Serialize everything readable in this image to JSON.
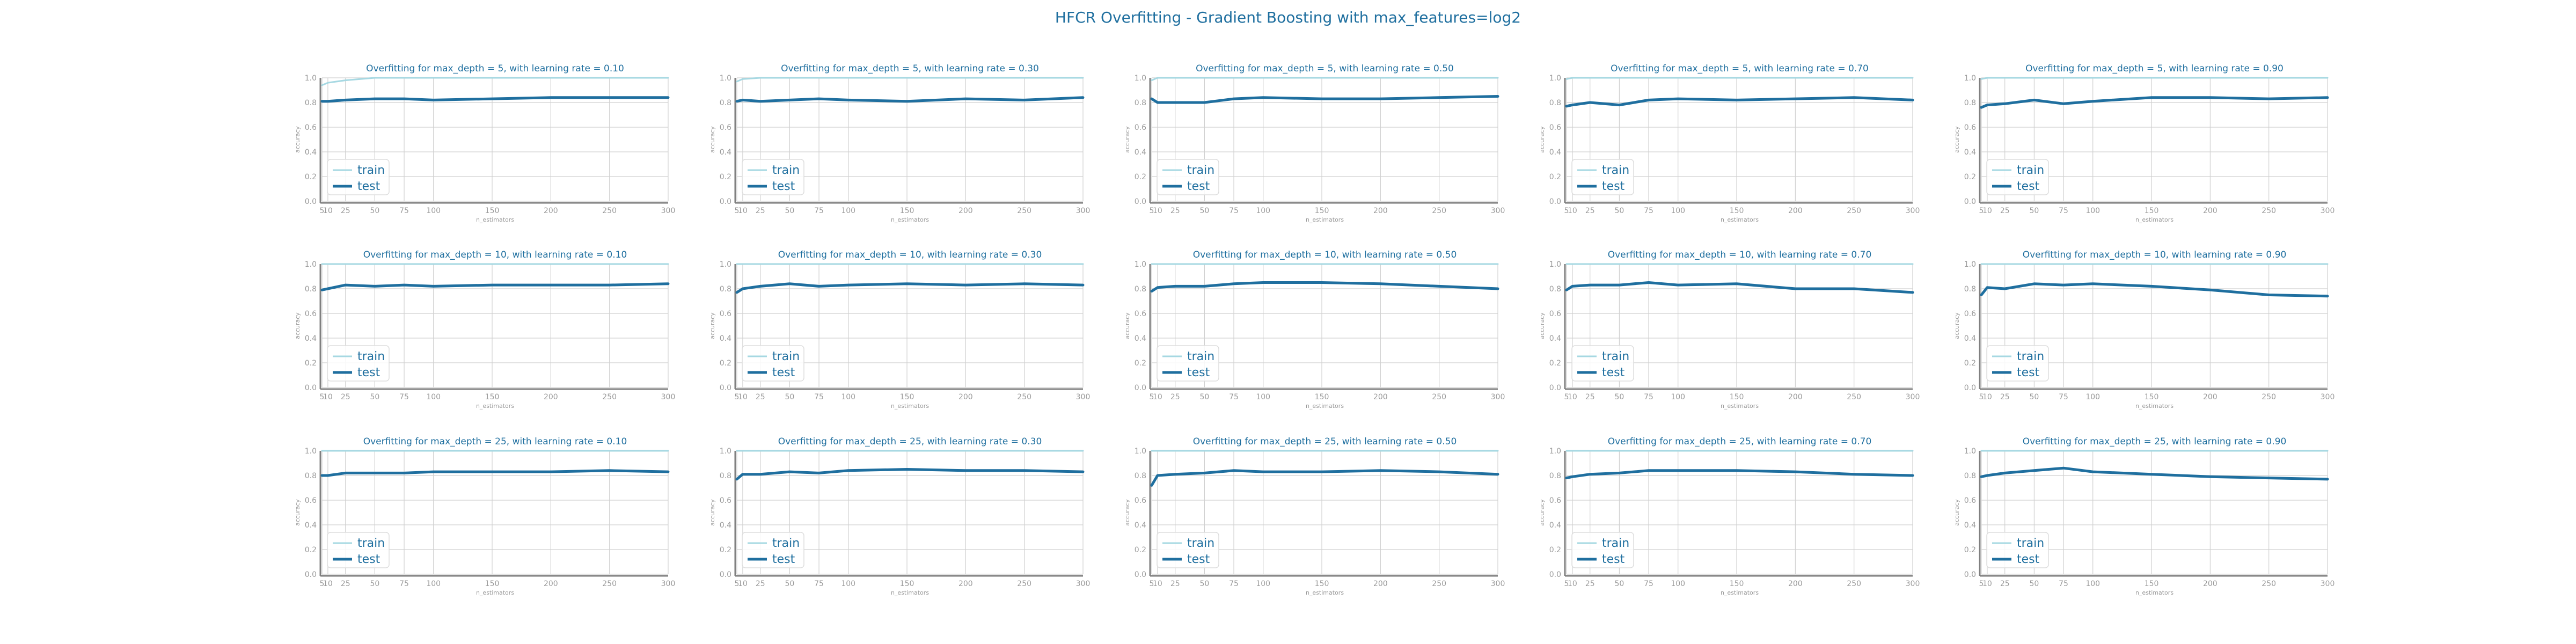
{
  "figure": {
    "title": "HFCR Overfitting - Gradient Boosting with max_features=log2",
    "colors": {
      "train": "#a6d8e2",
      "test": "#1f6f9f",
      "title": "#1f6f9f",
      "axis": "#808080",
      "grid": "#d0d0d0",
      "tick": "#9a9a9a"
    }
  },
  "chart_data": [
    {
      "type": "line",
      "title": "Overfitting for max_depth = 5, with learning rate = 0.10",
      "xlabel": "n_estimators",
      "ylabel": "accuracy",
      "x": [
        5,
        10,
        25,
        50,
        75,
        100,
        150,
        200,
        250,
        300
      ],
      "xticks": [
        "5",
        "10",
        "25",
        "50",
        "75",
        "100",
        "150",
        "200",
        "250",
        "300"
      ],
      "ylim": [
        0.0,
        1.0
      ],
      "yticks": [
        "0.0",
        "0.2",
        "0.4",
        "0.6",
        "0.8",
        "1.0"
      ],
      "xlim": [
        5,
        300
      ],
      "legend": "lower left",
      "grid": true,
      "series": [
        {
          "name": "train",
          "values": [
            0.94,
            0.96,
            0.98,
            1.0,
            1.0,
            1.0,
            1.0,
            1.0,
            1.0,
            1.0
          ]
        },
        {
          "name": "test",
          "values": [
            0.81,
            0.81,
            0.82,
            0.83,
            0.83,
            0.82,
            0.83,
            0.84,
            0.84,
            0.84
          ]
        }
      ]
    },
    {
      "type": "line",
      "title": "Overfitting for max_depth = 5, with learning rate = 0.30",
      "xlabel": "n_estimators",
      "ylabel": "accuracy",
      "x": [
        5,
        10,
        25,
        50,
        75,
        100,
        150,
        200,
        250,
        300
      ],
      "xticks": [
        "5",
        "10",
        "25",
        "50",
        "75",
        "100",
        "150",
        "200",
        "250",
        "300"
      ],
      "ylim": [
        0.0,
        1.0
      ],
      "yticks": [
        "0.0",
        "0.2",
        "0.4",
        "0.6",
        "0.8",
        "1.0"
      ],
      "xlim": [
        5,
        300
      ],
      "legend": "lower left",
      "grid": true,
      "series": [
        {
          "name": "train",
          "values": [
            0.97,
            0.99,
            1.0,
            1.0,
            1.0,
            1.0,
            1.0,
            1.0,
            1.0,
            1.0
          ]
        },
        {
          "name": "test",
          "values": [
            0.81,
            0.82,
            0.81,
            0.82,
            0.83,
            0.82,
            0.81,
            0.83,
            0.82,
            0.84
          ]
        }
      ]
    },
    {
      "type": "line",
      "title": "Overfitting for max_depth = 5, with learning rate = 0.50",
      "xlabel": "n_estimators",
      "ylabel": "accuracy",
      "x": [
        5,
        10,
        25,
        50,
        75,
        100,
        150,
        200,
        250,
        300
      ],
      "xticks": [
        "5",
        "10",
        "25",
        "50",
        "75",
        "100",
        "150",
        "200",
        "250",
        "300"
      ],
      "ylim": [
        0.0,
        1.0
      ],
      "yticks": [
        "0.0",
        "0.2",
        "0.4",
        "0.6",
        "0.8",
        "1.0"
      ],
      "xlim": [
        5,
        300
      ],
      "legend": "lower left",
      "grid": true,
      "series": [
        {
          "name": "train",
          "values": [
            0.98,
            1.0,
            1.0,
            1.0,
            1.0,
            1.0,
            1.0,
            1.0,
            1.0,
            1.0
          ]
        },
        {
          "name": "test",
          "values": [
            0.83,
            0.8,
            0.8,
            0.8,
            0.83,
            0.84,
            0.83,
            0.83,
            0.84,
            0.85
          ]
        }
      ]
    },
    {
      "type": "line",
      "title": "Overfitting for max_depth = 5, with learning rate = 0.70",
      "xlabel": "n_estimators",
      "ylabel": "accuracy",
      "x": [
        5,
        10,
        25,
        50,
        75,
        100,
        150,
        200,
        250,
        300
      ],
      "xticks": [
        "5",
        "10",
        "25",
        "50",
        "75",
        "100",
        "150",
        "200",
        "250",
        "300"
      ],
      "ylim": [
        0.0,
        1.0
      ],
      "yticks": [
        "0.0",
        "0.2",
        "0.4",
        "0.6",
        "0.8",
        "1.0"
      ],
      "xlim": [
        5,
        300
      ],
      "legend": "lower left",
      "grid": true,
      "series": [
        {
          "name": "train",
          "values": [
            0.99,
            1.0,
            1.0,
            1.0,
            1.0,
            1.0,
            1.0,
            1.0,
            1.0,
            1.0
          ]
        },
        {
          "name": "test",
          "values": [
            0.77,
            0.78,
            0.8,
            0.78,
            0.82,
            0.83,
            0.82,
            0.83,
            0.84,
            0.82
          ]
        }
      ]
    },
    {
      "type": "line",
      "title": "Overfitting for max_depth = 5, with learning rate = 0.90",
      "xlabel": "n_estimators",
      "ylabel": "accuracy",
      "x": [
        5,
        10,
        25,
        50,
        75,
        100,
        150,
        200,
        250,
        300
      ],
      "xticks": [
        "5",
        "10",
        "25",
        "50",
        "75",
        "100",
        "150",
        "200",
        "250",
        "300"
      ],
      "ylim": [
        0.0,
        1.0
      ],
      "yticks": [
        "0.0",
        "0.2",
        "0.4",
        "0.6",
        "0.8",
        "1.0"
      ],
      "xlim": [
        5,
        300
      ],
      "legend": "lower left",
      "grid": true,
      "series": [
        {
          "name": "train",
          "values": [
            0.99,
            1.0,
            1.0,
            1.0,
            1.0,
            1.0,
            1.0,
            1.0,
            1.0,
            1.0
          ]
        },
        {
          "name": "test",
          "values": [
            0.76,
            0.78,
            0.79,
            0.82,
            0.79,
            0.81,
            0.84,
            0.84,
            0.83,
            0.84
          ]
        }
      ]
    },
    {
      "type": "line",
      "title": "Overfitting for max_depth = 10, with learning rate = 0.10",
      "xlabel": "n_estimators",
      "ylabel": "accuracy",
      "x": [
        5,
        10,
        25,
        50,
        75,
        100,
        150,
        200,
        250,
        300
      ],
      "xticks": [
        "5",
        "10",
        "25",
        "50",
        "75",
        "100",
        "150",
        "200",
        "250",
        "300"
      ],
      "ylim": [
        0.0,
        1.0
      ],
      "yticks": [
        "0.0",
        "0.2",
        "0.4",
        "0.6",
        "0.8",
        "1.0"
      ],
      "xlim": [
        5,
        300
      ],
      "legend": "lower left",
      "grid": true,
      "series": [
        {
          "name": "train",
          "values": [
            1.0,
            1.0,
            1.0,
            1.0,
            1.0,
            1.0,
            1.0,
            1.0,
            1.0,
            1.0
          ]
        },
        {
          "name": "test",
          "values": [
            0.79,
            0.8,
            0.83,
            0.82,
            0.83,
            0.82,
            0.83,
            0.83,
            0.83,
            0.84
          ]
        }
      ]
    },
    {
      "type": "line",
      "title": "Overfitting for max_depth = 10, with learning rate = 0.30",
      "xlabel": "n_estimators",
      "ylabel": "accuracy",
      "x": [
        5,
        10,
        25,
        50,
        75,
        100,
        150,
        200,
        250,
        300
      ],
      "xticks": [
        "5",
        "10",
        "25",
        "50",
        "75",
        "100",
        "150",
        "200",
        "250",
        "300"
      ],
      "ylim": [
        0.0,
        1.0
      ],
      "yticks": [
        "0.0",
        "0.2",
        "0.4",
        "0.6",
        "0.8",
        "1.0"
      ],
      "xlim": [
        5,
        300
      ],
      "legend": "lower left",
      "grid": true,
      "series": [
        {
          "name": "train",
          "values": [
            1.0,
            1.0,
            1.0,
            1.0,
            1.0,
            1.0,
            1.0,
            1.0,
            1.0,
            1.0
          ]
        },
        {
          "name": "test",
          "values": [
            0.77,
            0.8,
            0.82,
            0.84,
            0.82,
            0.83,
            0.84,
            0.83,
            0.84,
            0.83
          ]
        }
      ]
    },
    {
      "type": "line",
      "title": "Overfitting for max_depth = 10, with learning rate = 0.50",
      "xlabel": "n_estimators",
      "ylabel": "accuracy",
      "x": [
        5,
        10,
        25,
        50,
        75,
        100,
        150,
        200,
        250,
        300
      ],
      "xticks": [
        "5",
        "10",
        "25",
        "50",
        "75",
        "100",
        "150",
        "200",
        "250",
        "300"
      ],
      "ylim": [
        0.0,
        1.0
      ],
      "yticks": [
        "0.0",
        "0.2",
        "0.4",
        "0.6",
        "0.8",
        "1.0"
      ],
      "xlim": [
        5,
        300
      ],
      "legend": "lower left",
      "grid": true,
      "series": [
        {
          "name": "train",
          "values": [
            1.0,
            1.0,
            1.0,
            1.0,
            1.0,
            1.0,
            1.0,
            1.0,
            1.0,
            1.0
          ]
        },
        {
          "name": "test",
          "values": [
            0.78,
            0.81,
            0.82,
            0.82,
            0.84,
            0.85,
            0.85,
            0.84,
            0.82,
            0.8
          ]
        }
      ]
    },
    {
      "type": "line",
      "title": "Overfitting for max_depth = 10, with learning rate = 0.70",
      "xlabel": "n_estimators",
      "ylabel": "accuracy",
      "x": [
        5,
        10,
        25,
        50,
        75,
        100,
        150,
        200,
        250,
        300
      ],
      "xticks": [
        "5",
        "10",
        "25",
        "50",
        "75",
        "100",
        "150",
        "200",
        "250",
        "300"
      ],
      "ylim": [
        0.0,
        1.0
      ],
      "yticks": [
        "0.0",
        "0.2",
        "0.4",
        "0.6",
        "0.8",
        "1.0"
      ],
      "xlim": [
        5,
        300
      ],
      "legend": "lower left",
      "grid": true,
      "series": [
        {
          "name": "train",
          "values": [
            1.0,
            1.0,
            1.0,
            1.0,
            1.0,
            1.0,
            1.0,
            1.0,
            1.0,
            1.0
          ]
        },
        {
          "name": "test",
          "values": [
            0.79,
            0.82,
            0.83,
            0.83,
            0.85,
            0.83,
            0.84,
            0.8,
            0.8,
            0.77
          ]
        }
      ]
    },
    {
      "type": "line",
      "title": "Overfitting for max_depth = 10, with learning rate = 0.90",
      "xlabel": "n_estimators",
      "ylabel": "accuracy",
      "x": [
        5,
        10,
        25,
        50,
        75,
        100,
        150,
        200,
        250,
        300
      ],
      "xticks": [
        "5",
        "10",
        "25",
        "50",
        "75",
        "100",
        "150",
        "200",
        "250",
        "300"
      ],
      "ylim": [
        0.0,
        1.0
      ],
      "yticks": [
        "0.0",
        "0.2",
        "0.4",
        "0.6",
        "0.8",
        "1.0"
      ],
      "xlim": [
        5,
        300
      ],
      "legend": "lower left",
      "grid": true,
      "series": [
        {
          "name": "train",
          "values": [
            1.0,
            1.0,
            1.0,
            1.0,
            1.0,
            1.0,
            1.0,
            1.0,
            1.0,
            1.0
          ]
        },
        {
          "name": "test",
          "values": [
            0.75,
            0.81,
            0.8,
            0.84,
            0.83,
            0.84,
            0.82,
            0.79,
            0.75,
            0.74
          ]
        }
      ]
    },
    {
      "type": "line",
      "title": "Overfitting for max_depth = 25, with learning rate = 0.10",
      "xlabel": "n_estimators",
      "ylabel": "accuracy",
      "x": [
        5,
        10,
        25,
        50,
        75,
        100,
        150,
        200,
        250,
        300
      ],
      "xticks": [
        "5",
        "10",
        "25",
        "50",
        "75",
        "100",
        "150",
        "200",
        "250",
        "300"
      ],
      "ylim": [
        0.0,
        1.0
      ],
      "yticks": [
        "0.0",
        "0.2",
        "0.4",
        "0.6",
        "0.8",
        "1.0"
      ],
      "xlim": [
        5,
        300
      ],
      "legend": "lower left",
      "grid": true,
      "series": [
        {
          "name": "train",
          "values": [
            1.0,
            1.0,
            1.0,
            1.0,
            1.0,
            1.0,
            1.0,
            1.0,
            1.0,
            1.0
          ]
        },
        {
          "name": "test",
          "values": [
            0.8,
            0.8,
            0.82,
            0.82,
            0.82,
            0.83,
            0.83,
            0.83,
            0.84,
            0.83
          ]
        }
      ]
    },
    {
      "type": "line",
      "title": "Overfitting for max_depth = 25, with learning rate = 0.30",
      "xlabel": "n_estimators",
      "ylabel": "accuracy",
      "x": [
        5,
        10,
        25,
        50,
        75,
        100,
        150,
        200,
        250,
        300
      ],
      "xticks": [
        "5",
        "10",
        "25",
        "50",
        "75",
        "100",
        "150",
        "200",
        "250",
        "300"
      ],
      "ylim": [
        0.0,
        1.0
      ],
      "yticks": [
        "0.0",
        "0.2",
        "0.4",
        "0.6",
        "0.8",
        "1.0"
      ],
      "xlim": [
        5,
        300
      ],
      "legend": "lower left",
      "grid": true,
      "series": [
        {
          "name": "train",
          "values": [
            1.0,
            1.0,
            1.0,
            1.0,
            1.0,
            1.0,
            1.0,
            1.0,
            1.0,
            1.0
          ]
        },
        {
          "name": "test",
          "values": [
            0.77,
            0.81,
            0.81,
            0.83,
            0.82,
            0.84,
            0.85,
            0.84,
            0.84,
            0.83
          ]
        }
      ]
    },
    {
      "type": "line",
      "title": "Overfitting for max_depth = 25, with learning rate = 0.50",
      "xlabel": "n_estimators",
      "ylabel": "accuracy",
      "x": [
        5,
        10,
        25,
        50,
        75,
        100,
        150,
        200,
        250,
        300
      ],
      "xticks": [
        "5",
        "10",
        "25",
        "50",
        "75",
        "100",
        "150",
        "200",
        "250",
        "300"
      ],
      "ylim": [
        0.0,
        1.0
      ],
      "yticks": [
        "0.0",
        "0.2",
        "0.4",
        "0.6",
        "0.8",
        "1.0"
      ],
      "xlim": [
        5,
        300
      ],
      "legend": "lower left",
      "grid": true,
      "series": [
        {
          "name": "train",
          "values": [
            1.0,
            1.0,
            1.0,
            1.0,
            1.0,
            1.0,
            1.0,
            1.0,
            1.0,
            1.0
          ]
        },
        {
          "name": "test",
          "values": [
            0.72,
            0.8,
            0.81,
            0.82,
            0.84,
            0.83,
            0.83,
            0.84,
            0.83,
            0.81
          ]
        }
      ]
    },
    {
      "type": "line",
      "title": "Overfitting for max_depth = 25, with learning rate = 0.70",
      "xlabel": "n_estimators",
      "ylabel": "accuracy",
      "x": [
        5,
        10,
        25,
        50,
        75,
        100,
        150,
        200,
        250,
        300
      ],
      "xticks": [
        "5",
        "10",
        "25",
        "50",
        "75",
        "100",
        "150",
        "200",
        "250",
        "300"
      ],
      "ylim": [
        0.0,
        1.0
      ],
      "yticks": [
        "0.0",
        "0.2",
        "0.4",
        "0.6",
        "0.8",
        "1.0"
      ],
      "xlim": [
        5,
        300
      ],
      "legend": "lower left",
      "grid": true,
      "series": [
        {
          "name": "train",
          "values": [
            1.0,
            1.0,
            1.0,
            1.0,
            1.0,
            1.0,
            1.0,
            1.0,
            1.0,
            1.0
          ]
        },
        {
          "name": "test",
          "values": [
            0.78,
            0.79,
            0.81,
            0.82,
            0.84,
            0.84,
            0.84,
            0.83,
            0.81,
            0.8
          ]
        }
      ]
    },
    {
      "type": "line",
      "title": "Overfitting for max_depth = 25, with learning rate = 0.90",
      "xlabel": "n_estimators",
      "ylabel": "accuracy",
      "x": [
        5,
        10,
        25,
        50,
        75,
        100,
        150,
        200,
        250,
        300
      ],
      "xticks": [
        "5",
        "10",
        "25",
        "50",
        "75",
        "100",
        "150",
        "200",
        "250",
        "300"
      ],
      "ylim": [
        0.0,
        1.0
      ],
      "yticks": [
        "0.0",
        "0.2",
        "0.4",
        "0.6",
        "0.8",
        "1.0"
      ],
      "xlim": [
        5,
        300
      ],
      "legend": "lower left",
      "grid": true,
      "series": [
        {
          "name": "train",
          "values": [
            1.0,
            1.0,
            1.0,
            1.0,
            1.0,
            1.0,
            1.0,
            1.0,
            1.0,
            1.0
          ]
        },
        {
          "name": "test",
          "values": [
            0.79,
            0.8,
            0.82,
            0.84,
            0.86,
            0.83,
            0.81,
            0.79,
            0.78,
            0.77
          ]
        }
      ]
    }
  ]
}
